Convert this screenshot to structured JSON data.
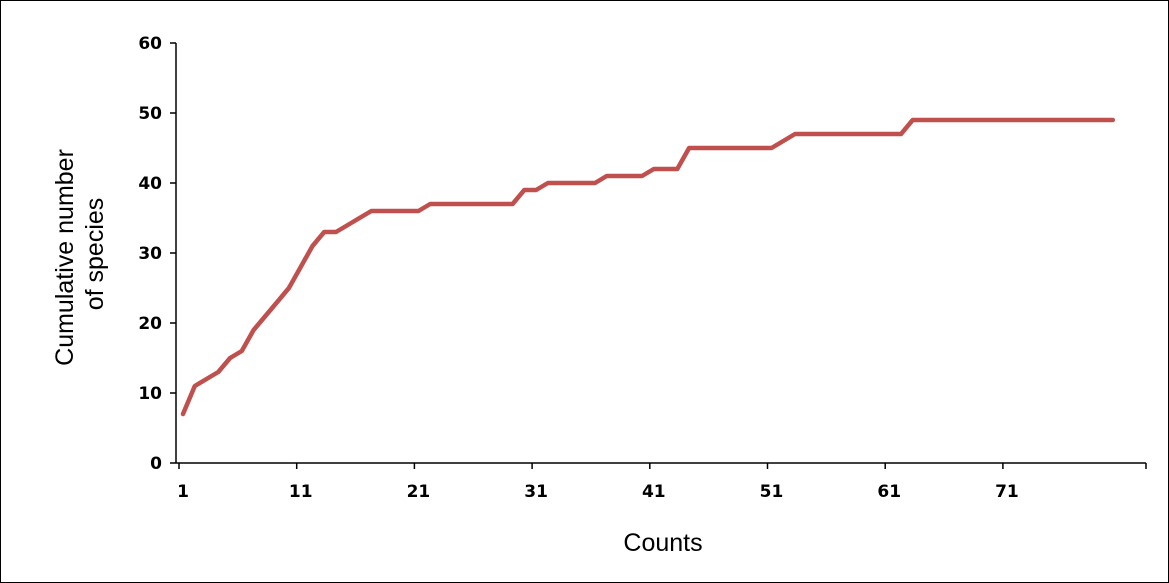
{
  "chart_data": {
    "type": "line",
    "title": "",
    "xlabel": "Counts",
    "ylabel_lines": [
      "Cumulative number",
      "of species"
    ],
    "xlim": [
      1,
      80
    ],
    "ylim": [
      0,
      60
    ],
    "x_ticks": [
      1,
      11,
      21,
      31,
      41,
      51,
      61,
      71
    ],
    "y_ticks": [
      0,
      10,
      20,
      30,
      40,
      50,
      60
    ],
    "grid": false,
    "legend": "none",
    "series": [
      {
        "color": "#c0504d",
        "x": [
          1,
          2,
          3,
          4,
          5,
          6,
          7,
          8,
          9,
          10,
          11,
          12,
          13,
          14,
          15,
          16,
          17,
          18,
          19,
          20,
          21,
          22,
          23,
          24,
          25,
          26,
          27,
          28,
          29,
          30,
          31,
          32,
          33,
          34,
          35,
          36,
          37,
          38,
          39,
          40,
          41,
          42,
          43,
          44,
          45,
          46,
          47,
          48,
          49,
          50,
          51,
          52,
          53,
          54,
          55,
          56,
          57,
          58,
          59,
          60,
          61,
          62,
          63,
          64,
          65,
          66,
          67,
          68,
          69,
          70,
          71,
          72,
          73,
          74,
          75,
          76,
          77,
          78,
          79,
          80
        ],
        "y": [
          7,
          11,
          12,
          13,
          15,
          16,
          19,
          21,
          23,
          25,
          28,
          31,
          33,
          33,
          34,
          35,
          36,
          36,
          36,
          36,
          36,
          37,
          37,
          37,
          37,
          37,
          37,
          37,
          37,
          39,
          39,
          40,
          40,
          40,
          40,
          40,
          41,
          41,
          41,
          41,
          42,
          42,
          42,
          45,
          45,
          45,
          45,
          45,
          45,
          45,
          45,
          46,
          47,
          47,
          47,
          47,
          47,
          47,
          47,
          47,
          47,
          47,
          49,
          49,
          49,
          49,
          49,
          49,
          49,
          49,
          49,
          49,
          49,
          49,
          49,
          49,
          49,
          49,
          49,
          49
        ]
      }
    ]
  }
}
